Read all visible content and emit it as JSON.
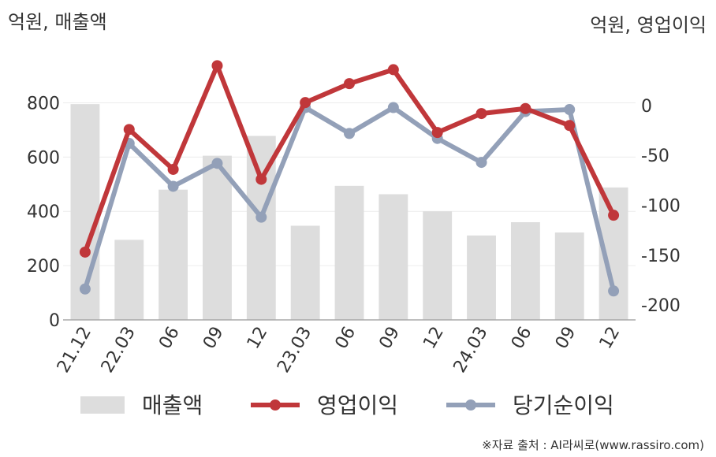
{
  "chart_data": {
    "type": "bar+line",
    "categories": [
      "21.12",
      "22.03",
      "06",
      "09",
      "12",
      "23.03",
      "06",
      "09",
      "12",
      "24.03",
      "06",
      "09",
      "12"
    ],
    "left_axis_label": "억원, 매출액",
    "right_axis_label": "억원, 영업이익",
    "left_ylim": [
      0,
      900
    ],
    "left_ticks": [
      0,
      200,
      400,
      600,
      800
    ],
    "right_ylim": [
      -215,
      30
    ],
    "right_ticks": [
      0,
      -50,
      -100,
      -150,
      -200
    ],
    "series": [
      {
        "name": "매출액",
        "kind": "bar",
        "axis": "left",
        "color": "#dddddd",
        "values": [
          795,
          295,
          480,
          605,
          678,
          347,
          494,
          463,
          400,
          311,
          360,
          322,
          488
        ]
      },
      {
        "name": "영업이익",
        "kind": "line",
        "axis": "right",
        "color": "#c0373a",
        "values": [
          -147,
          -24,
          -64,
          40,
          -74,
          3,
          22,
          36,
          -27,
          -8,
          -3,
          -20,
          -110
        ]
      },
      {
        "name": "당기순이익",
        "kind": "line",
        "axis": "right",
        "color": "#93a0b8",
        "values": [
          -184,
          -38,
          -81,
          -58,
          -112,
          -2,
          -28,
          -2,
          -33,
          -57,
          -6,
          -4,
          -186
        ]
      }
    ],
    "grid": true,
    "legend_position": "bottom"
  },
  "source": "※자료 출처 : AI라씨로(www.rassiro.com)"
}
